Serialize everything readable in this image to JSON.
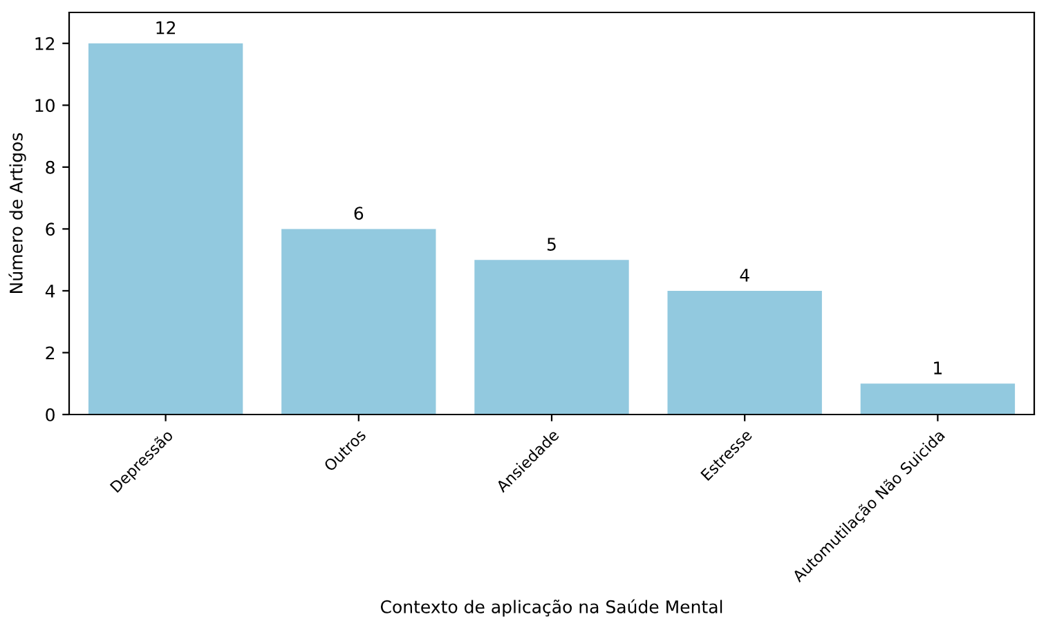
{
  "chart_data": {
    "type": "bar",
    "xlabel": "Contexto de aplicação na Saúde Mental",
    "ylabel": "Número de Artigos",
    "categories": [
      "Depressão",
      "Outros",
      "Ansiedade",
      "Estresse",
      "Automutilação Não Suicida"
    ],
    "values": [
      12,
      6,
      5,
      4,
      1
    ],
    "color": "#92c9df",
    "data_labels": true,
    "ylim": [
      0,
      13
    ],
    "yticks": [
      0,
      2,
      4,
      6,
      8,
      10,
      12
    ],
    "grid": false,
    "legend": false
  }
}
